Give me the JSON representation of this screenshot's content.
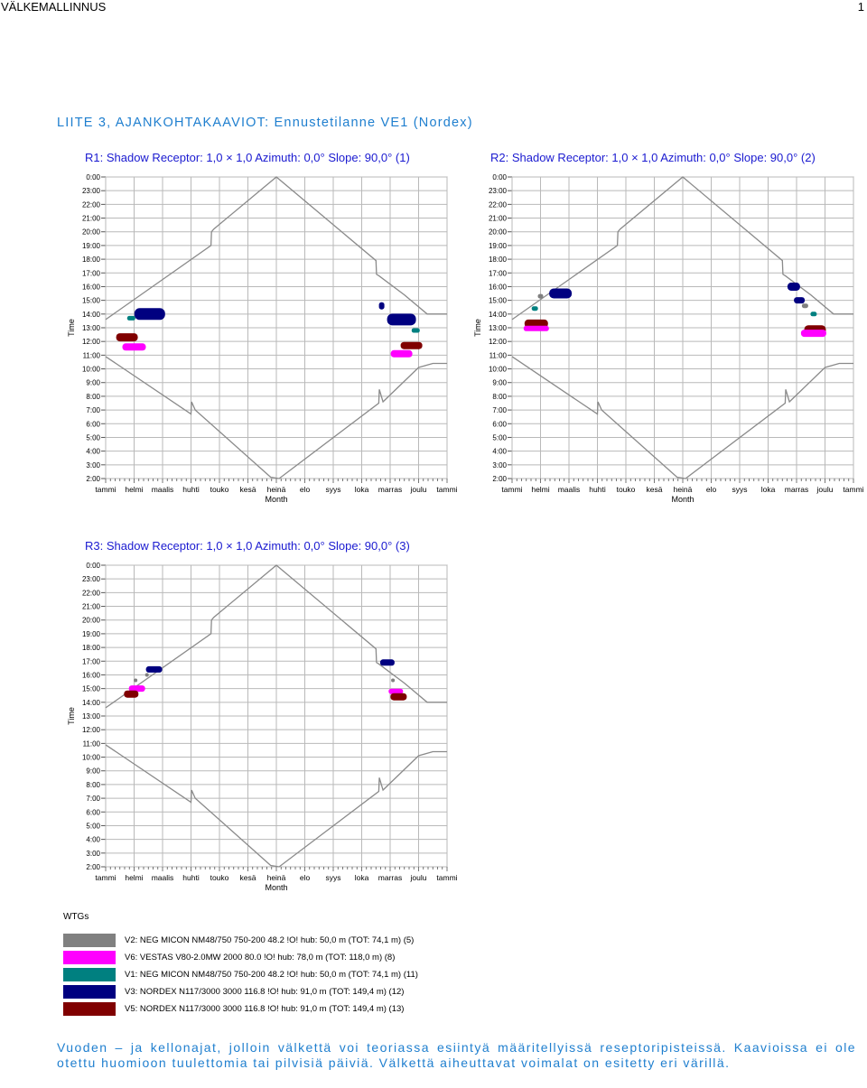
{
  "header": {
    "left": "VÄLKEMALLINNUS",
    "right": "1"
  },
  "section_title": "LIITE 3, AJANKOHTAKAAVIOT: Ennustetilanne VE1 (Nordex)",
  "axes": {
    "y_title": "Time",
    "x_title": "Month",
    "y_ticks": [
      "0:00",
      "23:00",
      "22:00",
      "21:00",
      "20:00",
      "19:00",
      "18:00",
      "17:00",
      "16:00",
      "15:00",
      "14:00",
      "13:00",
      "12:00",
      "11:00",
      "10:00",
      "9:00",
      "8:00",
      "7:00",
      "6:00",
      "5:00",
      "4:00",
      "3:00",
      "2:00"
    ],
    "x_ticks": [
      "tammi",
      "helmi",
      "maalis",
      "huhti",
      "touko",
      "kesä",
      "heinä",
      "elo",
      "syys",
      "loka",
      "marras",
      "joulu",
      "tammi"
    ]
  },
  "colors": {
    "V2": "#808080",
    "V6": "#ff00ff",
    "V1": "#008080",
    "V3": "#000080",
    "V5": "#800000",
    "curve": "#8a8a8a",
    "grid": "#b9b9b9",
    "title_blue": "#1a1ad0",
    "text_blue": "#1f7fcf"
  },
  "chart_data": [
    {
      "type": "scatter",
      "title": "R1: Shadow Receptor: 1,0 × 1,0 Azimuth: 0,0° Slope: 90,0° (1)",
      "xlabel": "Month",
      "ylabel": "Time",
      "ylim": [
        "2:00",
        "0:00"
      ],
      "sun_curve": "sunrise/sunset envelope",
      "series": [
        {
          "name": "V1",
          "points": [
            [
              "mid-Jan",
              "13:30"
            ],
            [
              "late-Nov",
              "13:00"
            ]
          ]
        },
        {
          "name": "V3",
          "points": [
            [
              "Feb",
              "14:00"
            ],
            [
              "late-Oct",
              "14:30"
            ],
            [
              "Nov",
              "13:40"
            ]
          ]
        },
        {
          "name": "V5",
          "points": [
            [
              "late-Jan",
              "12:20"
            ],
            [
              "Nov",
              "12:00"
            ]
          ]
        },
        {
          "name": "V6",
          "points": [
            [
              "Feb",
              "11:45"
            ],
            [
              "Nov",
              "11:30"
            ]
          ]
        }
      ]
    },
    {
      "type": "scatter",
      "title": "R2: Shadow Receptor: 1,0 × 1,0 Azimuth: 0,0° Slope: 90,0° (2)",
      "xlabel": "Month",
      "ylabel": "Time",
      "ylim": [
        "2:00",
        "0:00"
      ],
      "series": [
        {
          "name": "V1",
          "points": [
            [
              "late-Jan",
              "14:30"
            ],
            [
              "Nov",
              "14:00"
            ]
          ]
        },
        {
          "name": "V2",
          "points": [
            [
              "Feb",
              "15:30"
            ],
            [
              "late-Oct",
              "14:30"
            ]
          ]
        },
        {
          "name": "V3",
          "points": [
            [
              "Feb",
              "15:30"
            ],
            [
              "Oct",
              "16:00"
            ],
            [
              "Oct",
              "15:00"
            ]
          ]
        },
        {
          "name": "V5",
          "points": [
            [
              "Jan",
              "13:20"
            ],
            [
              "Nov",
              "12:50"
            ]
          ]
        },
        {
          "name": "V6",
          "points": [
            [
              "Jan",
              "13:00"
            ],
            [
              "Nov",
              "12:40"
            ]
          ]
        }
      ]
    },
    {
      "type": "scatter",
      "title": "R3: Shadow Receptor: 1,0 × 1,0 Azimuth: 0,0° Slope: 90,0° (3)",
      "xlabel": "Month",
      "ylabel": "Time",
      "ylim": [
        "2:00",
        "0:00"
      ],
      "series": [
        {
          "name": "V2",
          "points": [
            [
              "Feb",
              "15:40"
            ],
            [
              "Oct",
              "15:20"
            ]
          ]
        },
        {
          "name": "V3",
          "points": [
            [
              "Feb",
              "16:20"
            ],
            [
              "Oct",
              "17:00"
            ]
          ]
        },
        {
          "name": "V5",
          "points": [
            [
              "Feb",
              "14:40"
            ],
            [
              "Nov",
              "14:20"
            ]
          ]
        },
        {
          "name": "V6",
          "points": [
            [
              "Feb",
              "15:00"
            ],
            [
              "Oct",
              "14:40"
            ]
          ]
        }
      ]
    }
  ],
  "legend": {
    "title": "WTGs",
    "items": [
      {
        "key": "V2",
        "label": "V2: NEG MICON NM48/750 750-200 48.2 !O! hub: 50,0 m (TOT: 74,1 m) (5)"
      },
      {
        "key": "V6",
        "label": "V6: VESTAS V80-2.0MW 2000 80.0 !O! hub: 78,0 m (TOT: 118,0 m) (8)"
      },
      {
        "key": "V1",
        "label": "V1: NEG MICON NM48/750 750-200 48.2 !O! hub: 50,0 m (TOT: 74,1 m) (11)"
      },
      {
        "key": "V3",
        "label": "V3: NORDEX N117/3000 3000 116.8 !O! hub: 91,0 m (TOT: 149,4 m) (12)"
      },
      {
        "key": "V5",
        "label": "V5: NORDEX N117/3000 3000 116.8 !O! hub: 91,0 m (TOT: 149,4 m) (13)"
      }
    ]
  },
  "caption": "Vuoden – ja kellonajat, jolloin välkettä voi teoriassa esiintyä määritellyissä reseptoripisteissä. Kaavioissa ei ole otettu huomioon tuulettomia tai pilvisiä päiviä. Välkettä aiheuttavat voimalat on esitetty eri värillä."
}
